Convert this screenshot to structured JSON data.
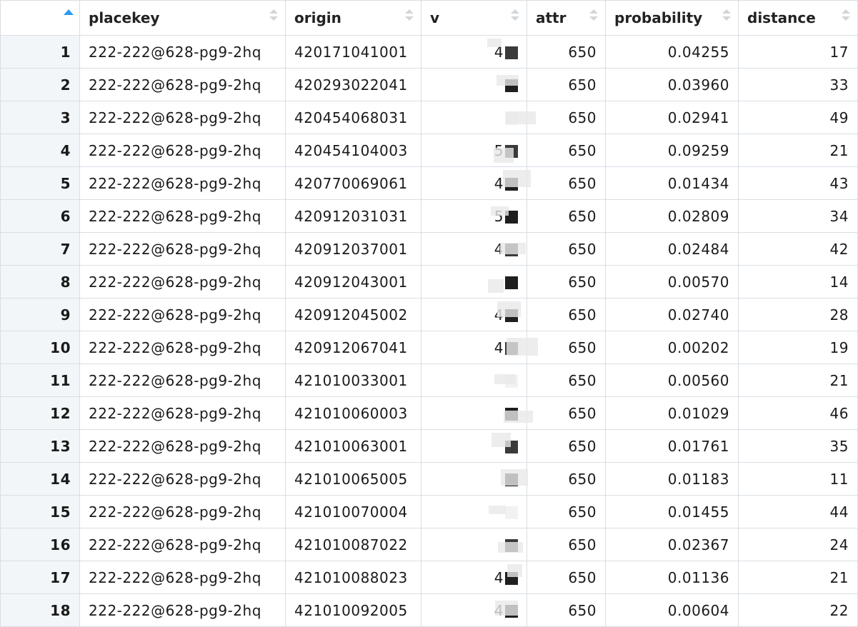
{
  "columns": {
    "index": "",
    "placekey": "placekey",
    "origin": "origin",
    "v": "v",
    "attr": "attr",
    "probability": "probability",
    "distance": "distance"
  },
  "colors": {
    "sort_active": "#2a9bf0",
    "border": "#d9dee3",
    "index_bg": "#f3f6f8"
  },
  "rows": [
    {
      "idx": "1",
      "placekey": "222-222@628-pg9-2hq",
      "origin": "420171041001",
      "v": "4",
      "attr": "650",
      "probability": "0.04255",
      "distance": "17"
    },
    {
      "idx": "2",
      "placekey": "222-222@628-pg9-2hq",
      "origin": "420293022041",
      "v": "",
      "attr": "650",
      "probability": "0.03960",
      "distance": "33"
    },
    {
      "idx": "3",
      "placekey": "222-222@628-pg9-2hq",
      "origin": "420454068031",
      "v": "",
      "attr": "650",
      "probability": "0.02941",
      "distance": "49"
    },
    {
      "idx": "4",
      "placekey": "222-222@628-pg9-2hq",
      "origin": "420454104003",
      "v": "5",
      "attr": "650",
      "probability": "0.09259",
      "distance": "21"
    },
    {
      "idx": "5",
      "placekey": "222-222@628-pg9-2hq",
      "origin": "420770069061",
      "v": "4",
      "attr": "650",
      "probability": "0.01434",
      "distance": "43"
    },
    {
      "idx": "6",
      "placekey": "222-222@628-pg9-2hq",
      "origin": "420912031031",
      "v": "5",
      "attr": "650",
      "probability": "0.02809",
      "distance": "34"
    },
    {
      "idx": "7",
      "placekey": "222-222@628-pg9-2hq",
      "origin": "420912037001",
      "v": "4",
      "attr": "650",
      "probability": "0.02484",
      "distance": "42"
    },
    {
      "idx": "8",
      "placekey": "222-222@628-pg9-2hq",
      "origin": "420912043001",
      "v": "",
      "attr": "650",
      "probability": "0.00570",
      "distance": "14"
    },
    {
      "idx": "9",
      "placekey": "222-222@628-pg9-2hq",
      "origin": "420912045002",
      "v": "4",
      "attr": "650",
      "probability": "0.02740",
      "distance": "28"
    },
    {
      "idx": "10",
      "placekey": "222-222@628-pg9-2hq",
      "origin": "420912067041",
      "v": "4",
      "attr": "650",
      "probability": "0.00202",
      "distance": "19"
    },
    {
      "idx": "11",
      "placekey": "222-222@628-pg9-2hq",
      "origin": "421010033001",
      "v": "",
      "attr": "650",
      "probability": "0.00560",
      "distance": "21"
    },
    {
      "idx": "12",
      "placekey": "222-222@628-pg9-2hq",
      "origin": "421010060003",
      "v": "",
      "attr": "650",
      "probability": "0.01029",
      "distance": "46"
    },
    {
      "idx": "13",
      "placekey": "222-222@628-pg9-2hq",
      "origin": "421010063001",
      "v": "",
      "attr": "650",
      "probability": "0.01761",
      "distance": "35"
    },
    {
      "idx": "14",
      "placekey": "222-222@628-pg9-2hq",
      "origin": "421010065005",
      "v": "",
      "attr": "650",
      "probability": "0.01183",
      "distance": "11"
    },
    {
      "idx": "15",
      "placekey": "222-222@628-pg9-2hq",
      "origin": "421010070004",
      "v": "",
      "attr": "650",
      "probability": "0.01455",
      "distance": "44"
    },
    {
      "idx": "16",
      "placekey": "222-222@628-pg9-2hq",
      "origin": "421010087022",
      "v": "",
      "attr": "650",
      "probability": "0.02367",
      "distance": "24"
    },
    {
      "idx": "17",
      "placekey": "222-222@628-pg9-2hq",
      "origin": "421010088023",
      "v": "4",
      "attr": "650",
      "probability": "0.01136",
      "distance": "21"
    },
    {
      "idx": "18",
      "placekey": "222-222@628-pg9-2hq",
      "origin": "421010092005",
      "v": "4",
      "attr": "650",
      "probability": "0.00604",
      "distance": "22"
    }
  ]
}
